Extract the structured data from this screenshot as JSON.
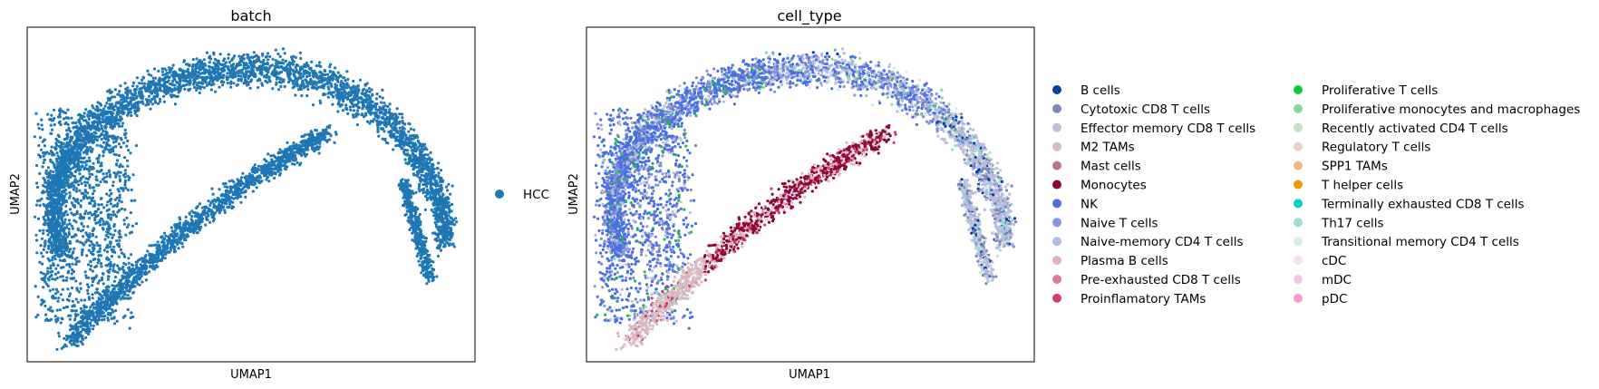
{
  "chart_data": [
    {
      "type": "scatter",
      "title": "batch",
      "xlabel": "UMAP1",
      "ylabel": "UMAP2",
      "grid": false,
      "legend_placement": "right",
      "series": [
        {
          "name": "HCC",
          "color": "#1f77b4"
        }
      ]
    },
    {
      "type": "scatter",
      "title": "cell_type",
      "xlabel": "UMAP1",
      "ylabel": "UMAP2",
      "grid": false,
      "legend_placement": "right",
      "series": [
        {
          "name": "B cells",
          "color": "#023fa5"
        },
        {
          "name": "Cytotoxic CD8 T cells",
          "color": "#7d87b9"
        },
        {
          "name": "Effector memory CD8 T cells",
          "color": "#bec1d4"
        },
        {
          "name": "M2 TAMs",
          "color": "#d6bcc0"
        },
        {
          "name": "Mast cells",
          "color": "#bb7784"
        },
        {
          "name": "Monocytes",
          "color": "#8e063b"
        },
        {
          "name": "NK",
          "color": "#4a6fe3"
        },
        {
          "name": "Naive T cells",
          "color": "#8595e1"
        },
        {
          "name": "Naive-memory CD4 T cells",
          "color": "#b5bbe3"
        },
        {
          "name": "Plasma B cells",
          "color": "#e6afb9"
        },
        {
          "name": "Pre-exhausted CD8 T cells",
          "color": "#e07b91"
        },
        {
          "name": "Proinflamatory TAMs",
          "color": "#d33f6a"
        },
        {
          "name": "Proliferative T cells",
          "color": "#11c638"
        },
        {
          "name": "Proliferative monocytes and macrophages",
          "color": "#8dd593"
        },
        {
          "name": "Recently activated CD4 T cells",
          "color": "#c6dec7"
        },
        {
          "name": "Regulatory T cells",
          "color": "#ead3c6"
        },
        {
          "name": "SPP1 TAMs",
          "color": "#f0b98d"
        },
        {
          "name": "T helper cells",
          "color": "#ef9708"
        },
        {
          "name": "Terminally exhausted CD8 T cells",
          "color": "#0fcfc0"
        },
        {
          "name": "Th17 cells",
          "color": "#9cded6"
        },
        {
          "name": "Transitional memory CD4 T cells",
          "color": "#d5eae7"
        },
        {
          "name": "cDC",
          "color": "#f3e1eb"
        },
        {
          "name": "mDC",
          "color": "#f6c4e1"
        },
        {
          "name": "pDC",
          "color": "#f79cd4"
        }
      ]
    }
  ]
}
